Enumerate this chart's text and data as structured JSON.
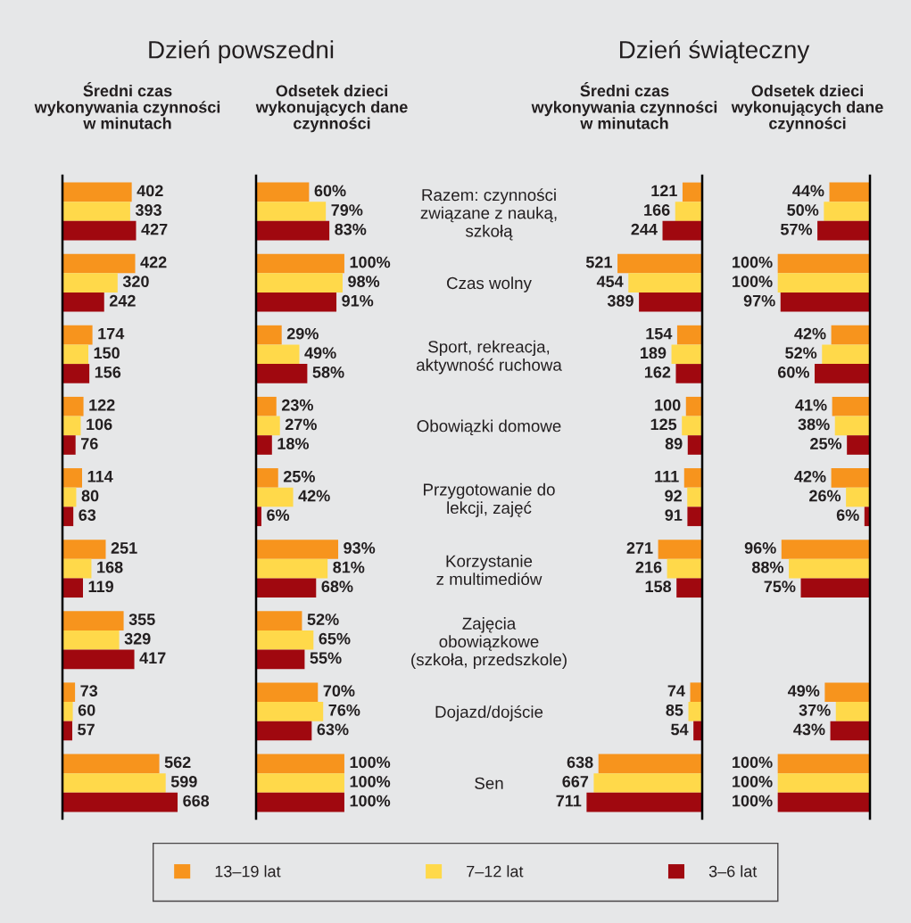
{
  "chart_data": [
    {
      "type": "bar",
      "orientation": "horizontal",
      "title": "Dzień powszedni",
      "subtitle": "Średni czas\nwykonywania czynności\nw minutach",
      "legend": "bottom",
      "data_labels": true,
      "categories": [
        null,
        null,
        null,
        null,
        null,
        null,
        null,
        null,
        null
      ],
      "series": [
        {
          "name": "13–19 lat",
          "color": "#f7941d",
          "values": [
            402,
            422,
            174,
            122,
            114,
            251,
            355,
            73,
            562
          ]
        },
        {
          "name": "7–12 lat",
          "color": "#ffd94a",
          "values": [
            393,
            320,
            150,
            106,
            80,
            168,
            329,
            60,
            599
          ]
        },
        {
          "name": "3–6 lat",
          "color": "#a0080f",
          "values": [
            427,
            242,
            156,
            76,
            63,
            119,
            417,
            57,
            668
          ]
        }
      ]
    },
    {
      "type": "bar",
      "orientation": "horizontal",
      "subtitle": "Odsetek dzieci\nwykonujących dane\nczynności",
      "categories": [
        null,
        null,
        null,
        null,
        null,
        null,
        null,
        null,
        null
      ],
      "series": [
        {
          "color": "#f7941d",
          "values": [
            60,
            100,
            29,
            23,
            25,
            93,
            52,
            70,
            100
          ],
          "value_labels": [
            "60%",
            "100%",
            "29%",
            "23%",
            "25%",
            "93%",
            "52%",
            "70%",
            "100%"
          ]
        },
        {
          "color": "#ffd94a",
          "values": [
            79,
            98,
            49,
            27,
            42,
            81,
            65,
            76,
            100
          ],
          "value_labels": [
            "79%",
            "98%",
            "49%",
            "27%",
            "42%",
            "81%",
            "65%",
            "76%",
            "100%"
          ]
        },
        {
          "color": "#a0080f",
          "values": [
            83,
            91,
            58,
            18,
            6,
            68,
            55,
            63,
            100
          ],
          "value_labels": [
            "83%",
            "91%",
            "58%",
            "18%",
            "6%",
            "68%",
            "55%",
            "63%",
            "100%"
          ]
        }
      ]
    },
    {
      "type": "bar",
      "orientation": "horizontal",
      "title": "Dzień świąteczny",
      "subtitle": "Średni czas\nwykonywania czynności\nw minutach",
      "data_labels": true,
      "categories": [
        "Razem: czynności\nzwiązane z nauką,\nszkołą",
        "Czas wolny",
        "Sport, rekreacja,\naktywność ruchowa",
        "Obowiązki domowe",
        "Przygotowanie do\nlekcji, zajęć",
        "Korzystanie\nz multimediów",
        "Zajęcia\nobowiązkowe\n(szkoła, przedszkole)",
        "Dojazd/dojście",
        "Sen"
      ],
      "series": [
        {
          "color": "#f7941d",
          "values": [
            121,
            521,
            154,
            100,
            111,
            271,
            null,
            74,
            638
          ]
        },
        {
          "color": "#ffd94a",
          "values": [
            166,
            454,
            189,
            125,
            92,
            216,
            null,
            85,
            667
          ]
        },
        {
          "color": "#a0080f",
          "values": [
            244,
            389,
            162,
            89,
            91,
            158,
            null,
            54,
            711
          ]
        }
      ]
    },
    {
      "type": "bar",
      "orientation": "horizontal",
      "subtitle": "Odsetek dzieci\nwykonujących dane\nczynności",
      "categories": [
        null,
        null,
        null,
        null,
        null,
        null,
        null,
        null,
        null
      ],
      "series": [
        {
          "color": "#f7941d",
          "values": [
            44,
            100,
            42,
            41,
            42,
            96,
            null,
            49,
            100
          ],
          "value_labels": [
            "44%",
            "100%",
            "42%",
            "41%",
            "42%",
            "96%",
            null,
            "49%",
            "100%"
          ]
        },
        {
          "color": "#ffd94a",
          "values": [
            50,
            100,
            52,
            38,
            26,
            88,
            null,
            37,
            100
          ],
          "value_labels": [
            "50%",
            "100%",
            "52%",
            "38%",
            "26%",
            "88%",
            null,
            "37%",
            "100%"
          ]
        },
        {
          "color": "#a0080f",
          "values": [
            57,
            97,
            60,
            25,
            6,
            75,
            null,
            43,
            100
          ],
          "value_labels": [
            "57%",
            "97%",
            "60%",
            "25%",
            "6%",
            "75%",
            null,
            "43%",
            "100%"
          ]
        }
      ]
    }
  ]
}
